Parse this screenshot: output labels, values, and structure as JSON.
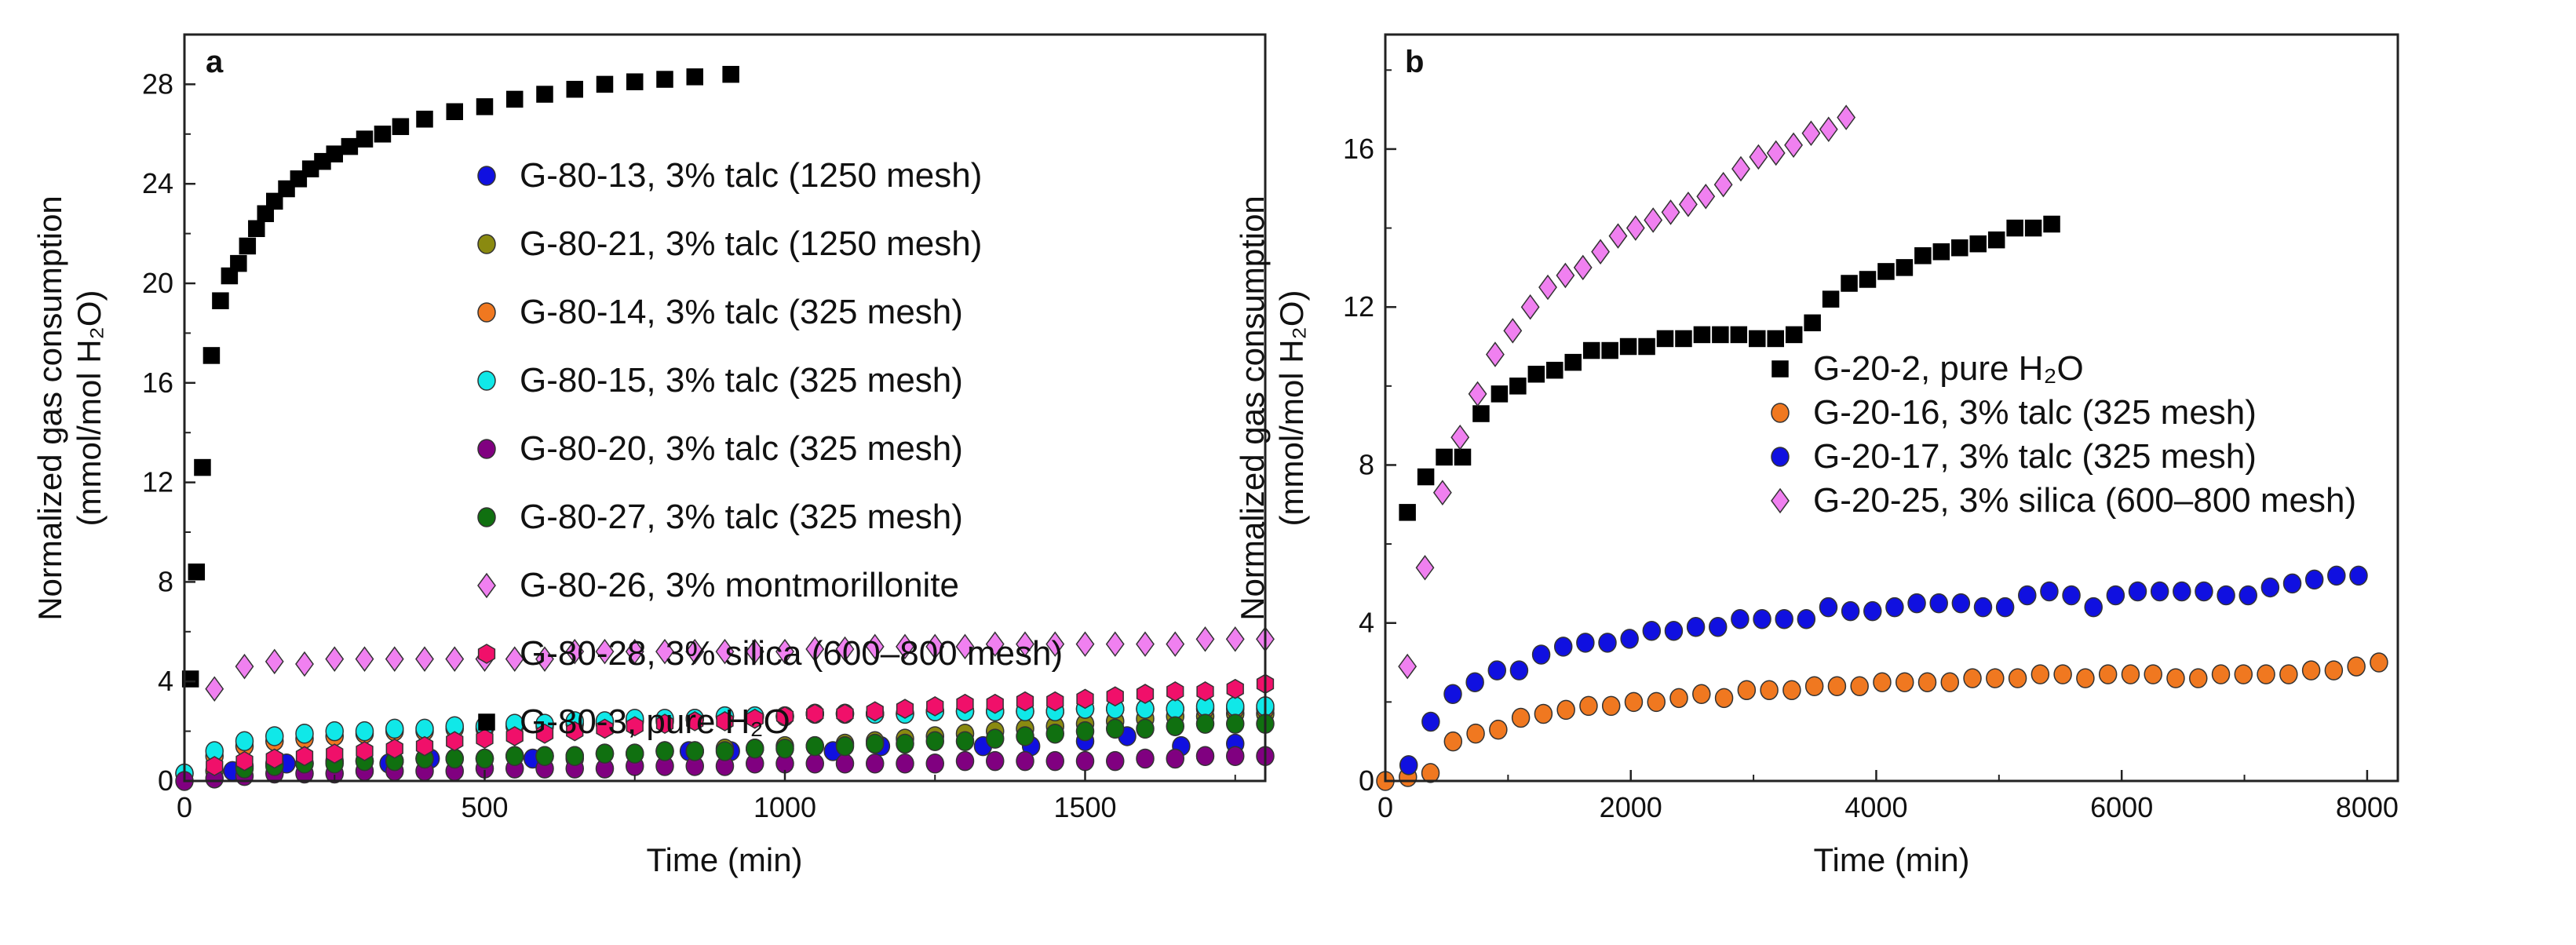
{
  "chart_data": [
    {
      "type": "scatter",
      "panel_label": "a",
      "xlabel": "Time (min)",
      "ylabel_line1": "Normalized gas consumption",
      "ylabel_line2": "(mmol/mol H₂O)",
      "xlim": [
        0,
        1800
      ],
      "ylim": [
        0,
        30
      ],
      "xticks": [
        0,
        500,
        1000,
        1500
      ],
      "yticks": [
        0,
        4,
        8,
        12,
        16,
        20,
        24,
        28
      ],
      "grid": false,
      "legend_position": "upper-right-center",
      "series": [
        {
          "name": "G-80-13, 3% talc (1250 mesh)",
          "marker": "circle",
          "color": "#1010e0",
          "x": [
            80,
            170,
            340,
            410,
            580,
            650,
            840,
            910,
            1080,
            1160,
            1330,
            1410,
            1500,
            1570,
            1660,
            1750
          ],
          "y": [
            0.4,
            0.7,
            0.7,
            0.9,
            0.9,
            0.9,
            1.2,
            1.2,
            1.2,
            1.4,
            1.4,
            1.4,
            1.6,
            1.8,
            1.4,
            1.5
          ]
        },
        {
          "name": "G-80-21, 3% talc (1250 mesh)",
          "marker": "circle",
          "color": "#8a8a10",
          "x0": 50,
          "dx": 50,
          "y": [
            0.4,
            0.6,
            0.7,
            0.7,
            0.8,
            0.8,
            0.8,
            0.9,
            0.9,
            0.9,
            1.0,
            1.0,
            1.0,
            1.1,
            1.1,
            1.2,
            1.2,
            1.3,
            1.3,
            1.4,
            1.4,
            1.5,
            1.6,
            1.7,
            1.8,
            1.9,
            2.0,
            2.1,
            2.2,
            2.3,
            2.4,
            2.5,
            2.6,
            2.6,
            2.7,
            2.7
          ]
        },
        {
          "name": "G-80-14, 3% talc (325 mesh)",
          "marker": "circle",
          "color": "#f07820",
          "x0": 0,
          "dx": 50,
          "y": [
            0.3,
            1.0,
            1.4,
            1.6,
            1.7,
            1.8,
            1.9,
            2.0,
            2.0,
            2.1,
            2.1,
            2.2,
            2.2,
            2.3,
            2.3,
            2.4,
            2.4,
            2.5,
            2.6,
            2.6,
            2.6,
            2.7,
            2.7,
            2.7,
            2.7,
            2.8,
            2.8,
            2.8,
            2.8,
            2.8,
            2.9,
            2.9,
            2.9,
            2.9,
            2.9,
            2.9,
            2.9
          ]
        },
        {
          "name": "G-80-15, 3% talc (325 mesh)",
          "marker": "circle",
          "color": "#10e8e8",
          "x0": 0,
          "dx": 50,
          "y": [
            0.3,
            1.2,
            1.6,
            1.8,
            1.9,
            2.0,
            2.0,
            2.1,
            2.1,
            2.2,
            2.2,
            2.3,
            2.3,
            2.4,
            2.4,
            2.5,
            2.5,
            2.5,
            2.6,
            2.6,
            2.6,
            2.7,
            2.7,
            2.7,
            2.7,
            2.8,
            2.8,
            2.8,
            2.8,
            2.8,
            2.9,
            2.9,
            2.9,
            2.9,
            3.0,
            3.0,
            3.0
          ]
        },
        {
          "name": "G-80-20, 3% talc (325 mesh)",
          "marker": "circle",
          "color": "#800080",
          "x0": 0,
          "dx": 50,
          "y": [
            0.0,
            0.1,
            0.2,
            0.3,
            0.3,
            0.3,
            0.4,
            0.4,
            0.4,
            0.4,
            0.5,
            0.5,
            0.5,
            0.5,
            0.5,
            0.6,
            0.6,
            0.6,
            0.6,
            0.7,
            0.7,
            0.7,
            0.7,
            0.7,
            0.7,
            0.7,
            0.8,
            0.8,
            0.8,
            0.8,
            0.8,
            0.8,
            0.9,
            0.9,
            1.0,
            1.0,
            1.0
          ]
        },
        {
          "name": "G-80-27, 3% talc (325 mesh)",
          "marker": "circle",
          "color": "#107010",
          "x0": 100,
          "dx": 50,
          "y": [
            0.5,
            0.6,
            0.7,
            0.7,
            0.8,
            0.8,
            0.9,
            0.9,
            0.9,
            1.0,
            1.0,
            1.0,
            1.1,
            1.1,
            1.2,
            1.2,
            1.2,
            1.3,
            1.3,
            1.4,
            1.4,
            1.5,
            1.5,
            1.6,
            1.6,
            1.7,
            1.8,
            1.9,
            2.0,
            2.1,
            2.1,
            2.2,
            2.3,
            2.3,
            2.3
          ]
        },
        {
          "name": "G-80-26, 3% montmorillonite",
          "marker": "diamond",
          "color": "#f080f0",
          "x0": 50,
          "dx": 50,
          "y": [
            3.7,
            4.6,
            4.8,
            4.7,
            4.9,
            4.9,
            4.9,
            4.9,
            4.9,
            4.9,
            4.9,
            4.9,
            5.2,
            5.2,
            5.2,
            5.2,
            5.2,
            5.2,
            5.2,
            5.2,
            5.3,
            5.3,
            5.4,
            5.4,
            5.4,
            5.4,
            5.5,
            5.5,
            5.5,
            5.5,
            5.5,
            5.5,
            5.5,
            5.7,
            5.7,
            5.7
          ]
        },
        {
          "name": "G-80-28, 3% silica (600–800 mesh)",
          "marker": "hexagon",
          "color": "#f0106a",
          "x0": 50,
          "dx": 50,
          "y": [
            0.6,
            0.8,
            0.9,
            1.0,
            1.1,
            1.2,
            1.3,
            1.4,
            1.6,
            1.7,
            1.8,
            1.9,
            2.0,
            2.1,
            2.2,
            2.3,
            2.4,
            2.4,
            2.5,
            2.6,
            2.7,
            2.7,
            2.8,
            2.9,
            3.0,
            3.1,
            3.1,
            3.2,
            3.2,
            3.3,
            3.4,
            3.5,
            3.6,
            3.6,
            3.7,
            3.9
          ]
        },
        {
          "name": "G-80-3, pure H₂O",
          "marker": "square",
          "color": "#000000",
          "x": [
            10,
            20,
            30,
            45,
            60,
            75,
            90,
            105,
            120,
            135,
            150,
            170,
            190,
            210,
            230,
            250,
            275,
            300,
            330,
            360,
            400,
            450,
            500,
            550,
            600,
            650,
            700,
            750,
            800,
            850,
            910
          ],
          "y": [
            4.1,
            8.4,
            12.6,
            17.1,
            19.3,
            20.3,
            20.8,
            21.5,
            22.2,
            22.8,
            23.3,
            23.8,
            24.2,
            24.6,
            24.9,
            25.2,
            25.5,
            25.8,
            26.0,
            26.3,
            26.6,
            26.9,
            27.1,
            27.4,
            27.6,
            27.8,
            28.0,
            28.1,
            28.2,
            28.3,
            28.4
          ]
        }
      ]
    },
    {
      "type": "scatter",
      "panel_label": "b",
      "xlabel": "Time (min)",
      "ylabel_line1": "Normalized gas consumption",
      "ylabel_line2": "(mmol/mol H₂O)",
      "xlim": [
        0,
        8250
      ],
      "ylim": [
        0,
        18.9
      ],
      "xticks": [
        0,
        2000,
        4000,
        6000,
        8000
      ],
      "yticks": [
        0,
        4,
        8,
        12,
        16
      ],
      "grid": false,
      "legend_position": "center-right",
      "series": [
        {
          "name": "G-20-2, pure H₂O",
          "marker": "square",
          "color": "#000000",
          "x0": 180,
          "dx": 150,
          "y": [
            6.8,
            7.7,
            8.2,
            8.2,
            9.3,
            9.8,
            10.0,
            10.3,
            10.4,
            10.6,
            10.9,
            10.9,
            11.0,
            11.0,
            11.2,
            11.2,
            11.3,
            11.3,
            11.3,
            11.2,
            11.2,
            11.3,
            11.6,
            12.2,
            12.6,
            12.7,
            12.9,
            13.0,
            13.3,
            13.4,
            13.5,
            13.6,
            13.7,
            14.0,
            14.0,
            14.1
          ]
        },
        {
          "name": "G-20-16, 3% talc (325 mesh)",
          "marker": "circle",
          "color": "#f07820",
          "x0": 0,
          "dx": 184,
          "y": [
            0.0,
            0.1,
            0.2,
            1.0,
            1.2,
            1.3,
            1.6,
            1.7,
            1.8,
            1.9,
            1.9,
            2.0,
            2.0,
            2.1,
            2.2,
            2.1,
            2.3,
            2.3,
            2.3,
            2.4,
            2.4,
            2.4,
            2.5,
            2.5,
            2.5,
            2.5,
            2.6,
            2.6,
            2.6,
            2.7,
            2.7,
            2.6,
            2.7,
            2.7,
            2.7,
            2.6,
            2.6,
            2.7,
            2.7,
            2.7,
            2.7,
            2.8,
            2.8,
            2.9,
            3.0
          ]
        },
        {
          "name": "G-20-17, 3% talc (325 mesh)",
          "marker": "circle",
          "color": "#1010e0",
          "x0": 190,
          "dx": 180,
          "y": [
            0.4,
            1.5,
            2.2,
            2.5,
            2.8,
            2.8,
            3.2,
            3.4,
            3.5,
            3.5,
            3.6,
            3.8,
            3.8,
            3.9,
            3.9,
            4.1,
            4.1,
            4.1,
            4.1,
            4.4,
            4.3,
            4.3,
            4.4,
            4.5,
            4.5,
            4.5,
            4.4,
            4.4,
            4.7,
            4.8,
            4.7,
            4.4,
            4.7,
            4.8,
            4.8,
            4.8,
            4.8,
            4.7,
            4.7,
            4.9,
            5.0,
            5.1,
            5.2,
            5.2
          ]
        },
        {
          "name": "G-20-25, 3% silica (600–800 mesh)",
          "marker": "diamond",
          "color": "#f080f0",
          "x0": 180,
          "dx": 143,
          "y": [
            2.9,
            5.4,
            7.3,
            8.7,
            9.8,
            10.8,
            11.4,
            12.0,
            12.5,
            12.8,
            13.0,
            13.4,
            13.8,
            14.0,
            14.2,
            14.4,
            14.6,
            14.8,
            15.1,
            15.5,
            15.8,
            15.9,
            16.1,
            16.4,
            16.5,
            16.8
          ]
        }
      ]
    }
  ]
}
